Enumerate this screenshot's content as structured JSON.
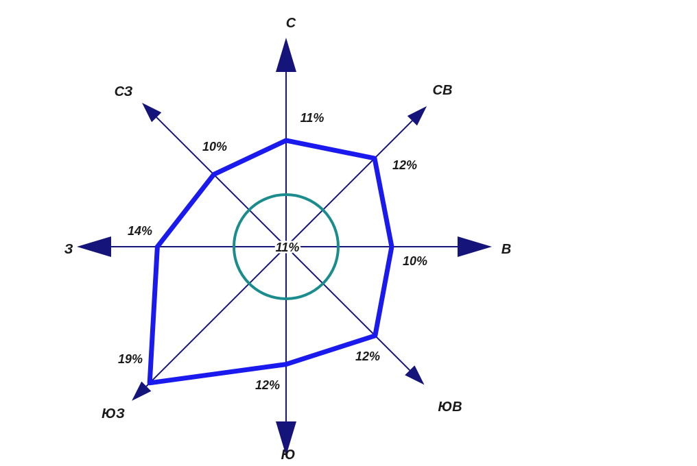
{
  "chart_data": {
    "type": "radar",
    "directions": [
      {
        "key": "N",
        "label": "С",
        "value": 11,
        "value_label": "11%"
      },
      {
        "key": "NE",
        "label": "СВ",
        "value": 12,
        "value_label": "12%"
      },
      {
        "key": "E",
        "label": "В",
        "value": 10,
        "value_label": "10%"
      },
      {
        "key": "SE",
        "label": "ЮВ",
        "value": 12,
        "value_label": "12%"
      },
      {
        "key": "S",
        "label": "Ю",
        "value": 12,
        "value_label": "12%"
      },
      {
        "key": "SW",
        "label": "ЮЗ",
        "value": 19,
        "value_label": "19%"
      },
      {
        "key": "W",
        "label": "З",
        "value": 14,
        "value_label": "14%"
      },
      {
        "key": "NW",
        "label": "СЗ",
        "value": 10,
        "value_label": "10%"
      }
    ],
    "calm": {
      "value": 11,
      "label": "11%"
    },
    "colors": {
      "axis": "#14147a",
      "polygon": "#1a1aee",
      "calm_circle": "#1a8c8c",
      "text": "#1a1a1a"
    },
    "grid": false,
    "legend": "none"
  }
}
